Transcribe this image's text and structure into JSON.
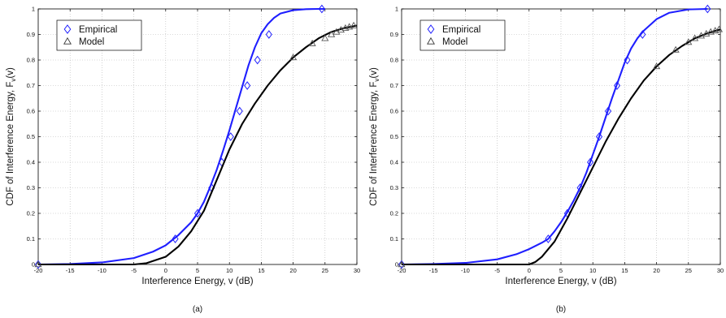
{
  "chart_data": [
    {
      "type": "line",
      "panel_label": "(a)",
      "xlabel": "Interference Energy, v (dB)",
      "ylabel_main": "CDF of Interference Energy, F",
      "ylabel_sub": "v",
      "ylabel_tail": "(v)",
      "xlim": [
        -20,
        30
      ],
      "ylim": [
        0,
        1
      ],
      "xticks": [
        "-20",
        "-15",
        "-10",
        "-5",
        "0",
        "5",
        "10",
        "15",
        "20",
        "25",
        "30"
      ],
      "yticks": [
        "0",
        "0.1",
        "0.2",
        "0.3",
        "0.4",
        "0.5",
        "0.6",
        "0.7",
        "0.8",
        "0.9",
        "1"
      ],
      "grid": true,
      "legend_position": "top-left",
      "legend": [
        {
          "label": "Empirical",
          "marker": "diamond",
          "color": "#1f1fff"
        },
        {
          "label": "Model",
          "marker": "triangle",
          "color": "#333333"
        }
      ],
      "series": [
        {
          "name": "Empirical",
          "color": "#1f1fff",
          "marker": "diamond",
          "x": [
            -20,
            -15,
            -10,
            -5,
            -2,
            0,
            2,
            4,
            5,
            6,
            7,
            8,
            9,
            10,
            11,
            12,
            13,
            14,
            15,
            16,
            17,
            18,
            20,
            22,
            24,
            25
          ],
          "y": [
            0.0,
            0.002,
            0.008,
            0.025,
            0.05,
            0.075,
            0.115,
            0.165,
            0.2,
            0.245,
            0.305,
            0.37,
            0.445,
            0.525,
            0.61,
            0.695,
            0.78,
            0.85,
            0.905,
            0.94,
            0.965,
            0.982,
            0.995,
            0.999,
            1.0,
            1.0
          ],
          "marker_points": [
            [
              -20,
              0.0
            ],
            [
              1.5,
              0.1
            ],
            [
              5,
              0.2
            ],
            [
              7.2,
              0.3
            ],
            [
              8.8,
              0.4
            ],
            [
              10.2,
              0.5
            ],
            [
              11.6,
              0.6
            ],
            [
              12.8,
              0.7
            ],
            [
              14.4,
              0.8
            ],
            [
              16.2,
              0.9
            ],
            [
              24.5,
              1.0
            ]
          ]
        },
        {
          "name": "Model",
          "color": "#000000",
          "marker": "triangle",
          "x": [
            -20,
            -5,
            -3,
            0,
            2,
            4,
            6,
            7,
            8,
            9,
            10,
            12,
            14,
            16,
            18,
            20,
            22,
            24,
            26,
            28,
            30
          ],
          "y": [
            0.0,
            0.0,
            0.005,
            0.03,
            0.07,
            0.13,
            0.21,
            0.27,
            0.33,
            0.39,
            0.45,
            0.55,
            0.63,
            0.7,
            0.76,
            0.81,
            0.85,
            0.885,
            0.91,
            0.925,
            0.935
          ],
          "marker_points": [
            [
              -20,
              0.0
            ],
            [
              20,
              0.81
            ],
            [
              23,
              0.865
            ],
            [
              25,
              0.885
            ],
            [
              26,
              0.9
            ],
            [
              26.8,
              0.91
            ],
            [
              27.5,
              0.918
            ],
            [
              28.2,
              0.925
            ],
            [
              28.8,
              0.93
            ],
            [
              29.5,
              0.935
            ]
          ]
        }
      ]
    },
    {
      "type": "line",
      "panel_label": "(b)",
      "xlabel": "Interference Energy, v (dB)",
      "ylabel_main": "CDF of Interference Energy, F",
      "ylabel_sub": "v",
      "ylabel_tail": "(v)",
      "xlim": [
        -20,
        30
      ],
      "ylim": [
        0,
        1
      ],
      "xticks": [
        "-20",
        "-15",
        "-10",
        "-5",
        "0",
        "5",
        "10",
        "15",
        "20",
        "25",
        "30"
      ],
      "yticks": [
        "0",
        "0.1",
        "0.2",
        "0.3",
        "0.4",
        "0.5",
        "0.6",
        "0.7",
        "0.8",
        "0.9",
        "1"
      ],
      "grid": true,
      "legend_position": "top-left",
      "legend": [
        {
          "label": "Empirical",
          "marker": "diamond",
          "color": "#1f1fff"
        },
        {
          "label": "Model",
          "marker": "triangle",
          "color": "#333333"
        }
      ],
      "series": [
        {
          "name": "Empirical",
          "color": "#1f1fff",
          "marker": "diamond",
          "x": [
            -20,
            -15,
            -10,
            -5,
            -2,
            0,
            2,
            3,
            4,
            5,
            6,
            7,
            8,
            9,
            10,
            11,
            12,
            13,
            14,
            15,
            16,
            17,
            18,
            20,
            22,
            25,
            28
          ],
          "y": [
            0.0,
            0.002,
            0.006,
            0.02,
            0.04,
            0.06,
            0.085,
            0.1,
            0.13,
            0.165,
            0.205,
            0.25,
            0.3,
            0.36,
            0.43,
            0.5,
            0.575,
            0.65,
            0.72,
            0.79,
            0.845,
            0.885,
            0.915,
            0.96,
            0.985,
            0.998,
            1.0
          ],
          "marker_points": [
            [
              -20,
              0.0
            ],
            [
              3,
              0.1
            ],
            [
              6,
              0.2
            ],
            [
              8,
              0.3
            ],
            [
              9.6,
              0.4
            ],
            [
              11,
              0.5
            ],
            [
              12.4,
              0.6
            ],
            [
              13.8,
              0.7
            ],
            [
              15.4,
              0.8
            ],
            [
              17.8,
              0.9
            ],
            [
              28,
              1.0
            ]
          ]
        },
        {
          "name": "Model",
          "color": "#000000",
          "marker": "triangle",
          "x": [
            -20,
            0,
            1,
            2,
            4,
            6,
            8,
            10,
            12,
            14,
            16,
            18,
            20,
            22,
            24,
            26,
            28,
            30
          ],
          "y": [
            0.0,
            0.0,
            0.01,
            0.03,
            0.09,
            0.18,
            0.28,
            0.38,
            0.48,
            0.57,
            0.65,
            0.72,
            0.775,
            0.82,
            0.855,
            0.885,
            0.905,
            0.92
          ],
          "marker_points": [
            [
              -20,
              0.0
            ],
            [
              20,
              0.775
            ],
            [
              23,
              0.84
            ],
            [
              25,
              0.87
            ],
            [
              26,
              0.885
            ],
            [
              27,
              0.895
            ],
            [
              27.8,
              0.903
            ],
            [
              28.5,
              0.91
            ],
            [
              29.2,
              0.915
            ],
            [
              29.8,
              0.92
            ]
          ]
        }
      ]
    }
  ]
}
